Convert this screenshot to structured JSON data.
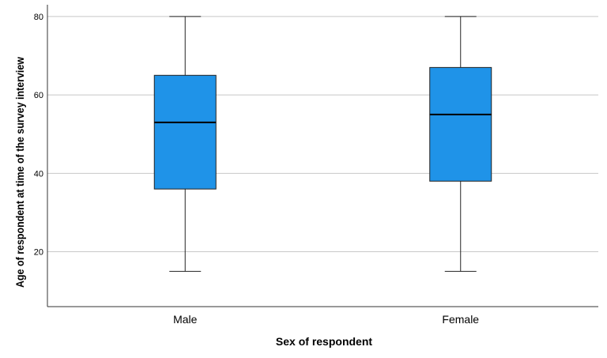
{
  "chart_data": {
    "type": "boxplot",
    "xlabel": "Sex of respondent",
    "ylabel": "Age of respondent at time of the survey interview",
    "categories": [
      "Male",
      "Female"
    ],
    "boxes": [
      {
        "category": "Male",
        "min": 15,
        "q1": 36,
        "median": 53,
        "q3": 65,
        "max": 80
      },
      {
        "category": "Female",
        "min": 15,
        "q1": 38,
        "median": 55,
        "q3": 67,
        "max": 80
      }
    ],
    "yticks": [
      20,
      40,
      60,
      80
    ],
    "ylim": [
      6,
      83
    ],
    "grid": "horizontal",
    "colors": {
      "box_fill": "#1f93e8",
      "box_stroke": "#222222",
      "grid": "#c8c8c8",
      "axis": "#333333"
    }
  }
}
